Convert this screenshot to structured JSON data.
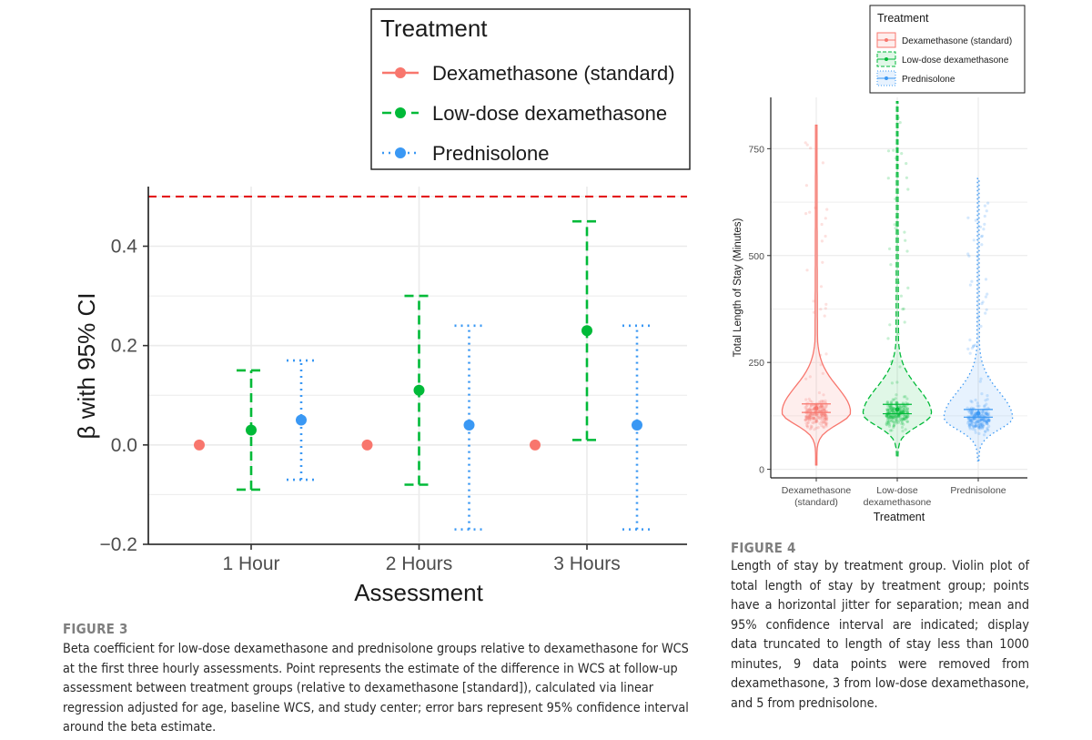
{
  "colors": {
    "dexamethasone": "#F8766D",
    "low_dose": "#00BA38",
    "prednisolone": "#3A98F4",
    "reference_line": "#E31A1C",
    "grid": "#EBEBEB"
  },
  "figure3": {
    "label": "FIGURE 3",
    "caption": "Beta coefficient for low-dose dexamethasone and prednisolone groups relative to dexamethasone for WCS at the first three hourly assessments. Point represents the estimate of the difference in WCS at follow-up assessment between treatment groups (relative to dexamethasone [standard]), calculated via linear regression adjusted for age, baseline WCS, and study center; error bars represent 95% confidence interval around the beta estimate."
  },
  "figure4": {
    "label": "FIGURE 4",
    "caption": "Length of stay by treatment group. Violin plot of total length of stay by treatment group; points have a horizontal jitter for separation; mean and 95% confidence interval are indicated; display data truncated to length of stay less than 1000 minutes, 9 data points were removed from dexamethasone, 3 from low-dose dexamethasone, and 5 from prednisolone."
  },
  "chart_data": [
    {
      "type": "scatter",
      "title": "",
      "xlabel": "Assessment",
      "ylabel": "β with 95% CI",
      "categories": [
        "1 Hour",
        "2 Hours",
        "3 Hours"
      ],
      "ylim": [
        -0.2,
        0.52
      ],
      "yticks": [
        -0.2,
        0.0,
        0.2,
        0.4
      ],
      "ytick_labels": [
        "−0.2",
        "0.0",
        "0.2",
        "0.4"
      ],
      "reference_line": 0.5,
      "legend": {
        "title": "Treatment",
        "position": "top-right"
      },
      "series": [
        {
          "name": "Dexamethasone (standard)",
          "color_key": "dexamethasone",
          "linestyle": "solid",
          "points": [
            {
              "estimate": 0.0
            },
            {
              "estimate": 0.0
            },
            {
              "estimate": 0.0
            }
          ]
        },
        {
          "name": "Low-dose dexamethasone",
          "color_key": "low_dose",
          "linestyle": "dashed",
          "points": [
            {
              "estimate": 0.03,
              "lower": -0.09,
              "upper": 0.15
            },
            {
              "estimate": 0.11,
              "lower": -0.08,
              "upper": 0.3
            },
            {
              "estimate": 0.23,
              "lower": 0.01,
              "upper": 0.45
            }
          ]
        },
        {
          "name": "Prednisolone",
          "color_key": "prednisolone",
          "linestyle": "dotted",
          "points": [
            {
              "estimate": 0.05,
              "lower": -0.07,
              "upper": 0.17
            },
            {
              "estimate": 0.04,
              "lower": -0.17,
              "upper": 0.24
            },
            {
              "estimate": 0.04,
              "lower": -0.17,
              "upper": 0.24
            }
          ]
        }
      ]
    },
    {
      "type": "violin",
      "title": "",
      "xlabel": "Treatment",
      "ylabel": "Total Length of Stay (Minutes)",
      "ylim": [
        -20,
        870
      ],
      "yticks": [
        0,
        250,
        500,
        750
      ],
      "ytick_labels": [
        "0",
        "250",
        "500",
        "750"
      ],
      "legend": {
        "title": "Treatment",
        "position": "top-right"
      },
      "groups": [
        {
          "name": "Dexamethasone (standard)",
          "label_lines": [
            "Dexamethasone",
            "(standard)"
          ],
          "color_key": "dexamethasone",
          "linestyle": "solid",
          "min": 10,
          "max": 805,
          "mean": 143,
          "ci_lower": 133,
          "ci_upper": 153
        },
        {
          "name": "Low-dose dexamethasone",
          "label_lines": [
            "Low-dose",
            "dexamethasone"
          ],
          "color_key": "low_dose",
          "linestyle": "dashed",
          "min": 30,
          "max": 860,
          "mean": 140,
          "ci_lower": 130,
          "ci_upper": 152
        },
        {
          "name": "Prednisolone",
          "label_lines": [
            "Prednisolone"
          ],
          "color_key": "prednisolone",
          "linestyle": "dotted",
          "min": 20,
          "max": 680,
          "mean": 131,
          "ci_lower": 122,
          "ci_upper": 140
        }
      ]
    }
  ]
}
